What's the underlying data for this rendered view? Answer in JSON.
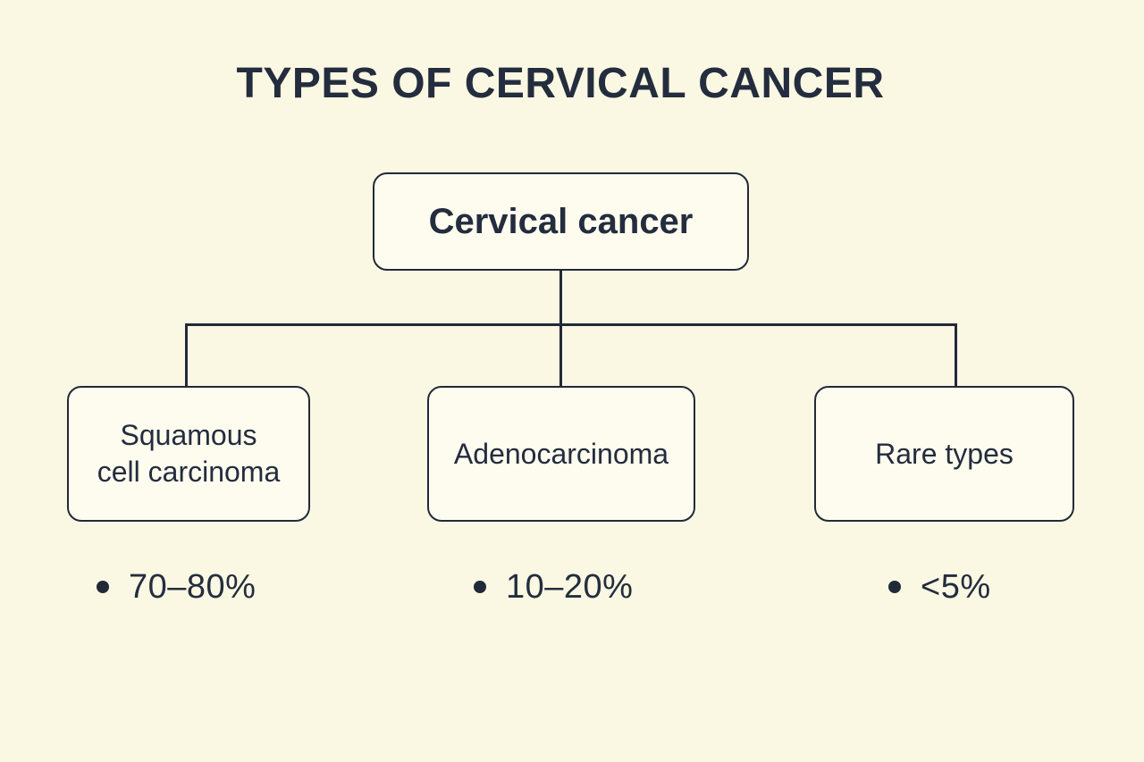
{
  "title": "TYPES OF CERVICAL CANCER",
  "diagram": {
    "root": {
      "label": "Cervical cancer"
    },
    "children": [
      {
        "label": "Squamous\ncell carcinoma",
        "stat": "70–80%"
      },
      {
        "label": "Adenocarcinoma",
        "stat": "10–20%"
      },
      {
        "label": "Rare types",
        "stat": "<5%"
      }
    ]
  },
  "colors": {
    "background": "#FAF7E2",
    "node_fill": "#FEFCEF",
    "line": "#212A39",
    "text": "#232D3E"
  }
}
